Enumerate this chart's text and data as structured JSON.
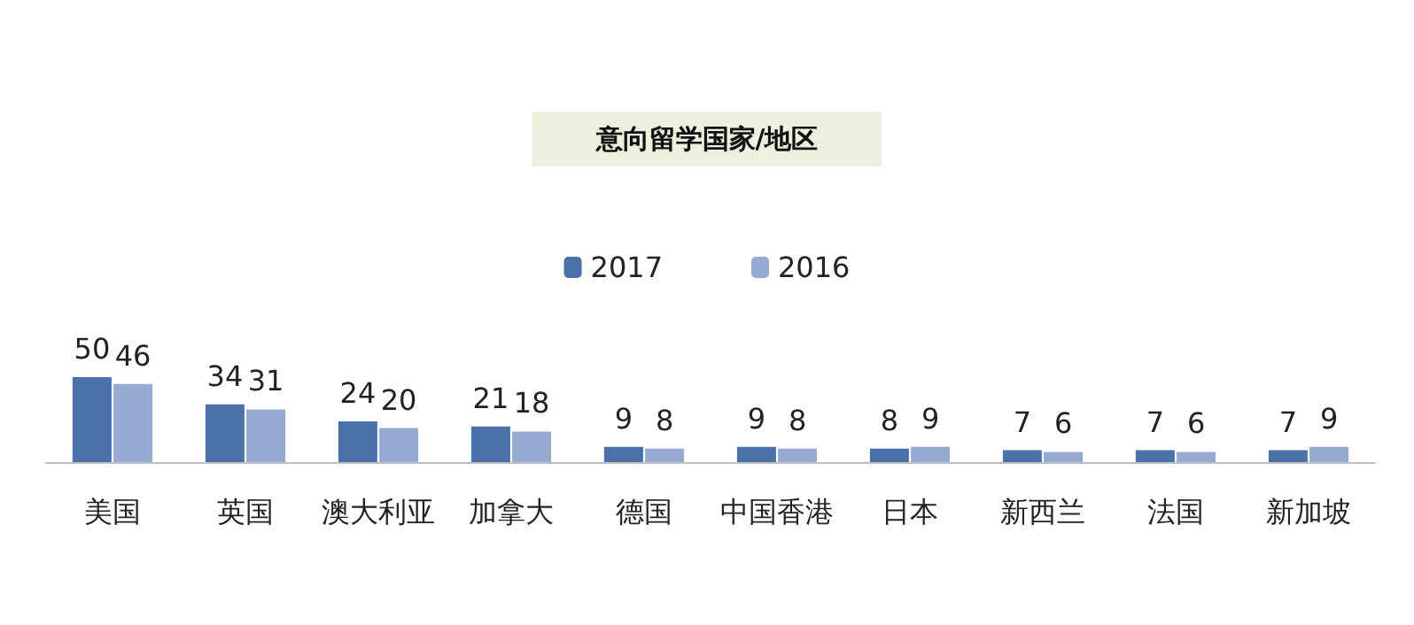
{
  "chart_data": {
    "type": "bar",
    "title": "意向留学国家/地区",
    "categories": [
      "美国",
      "英国",
      "澳大利亚",
      "加拿大",
      "德国",
      "中国香港",
      "日本",
      "新西兰",
      "法国",
      "新加坡"
    ],
    "series": [
      {
        "name": "2017",
        "color": "#4a72a8",
        "values": [
          50,
          34,
          24,
          21,
          9,
          9,
          8,
          7,
          7,
          7
        ]
      },
      {
        "name": "2016",
        "color": "#95abd2",
        "values": [
          46,
          31,
          20,
          18,
          8,
          8,
          9,
          6,
          6,
          9
        ]
      }
    ],
    "data_labels": true,
    "legend": "top"
  }
}
